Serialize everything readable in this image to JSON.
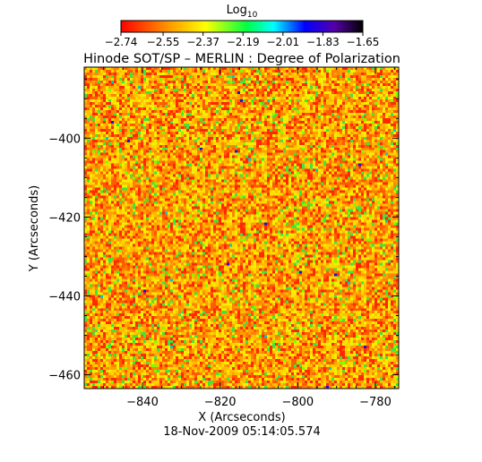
{
  "chart_data": {
    "type": "heatmap",
    "title": "Hinode SOT/SP – MERLIN : Degree of Polarization",
    "xlabel": "X (Arcseconds)",
    "ylabel": "Y (Arcseconds)",
    "timestamp": "18-Nov-2009 05:14:05.574",
    "xlim": [
      -855,
      -774
    ],
    "ylim": [
      -463.5,
      -382
    ],
    "x_ticks": [
      {
        "value": -840,
        "label": "−840"
      },
      {
        "value": -820,
        "label": "−820"
      },
      {
        "value": -800,
        "label": "−800"
      },
      {
        "value": -780,
        "label": "−780"
      }
    ],
    "y_ticks": [
      {
        "value": -400,
        "label": "−400"
      },
      {
        "value": -420,
        "label": "−420"
      },
      {
        "value": -440,
        "label": "−440"
      },
      {
        "value": -460,
        "label": "−460"
      }
    ],
    "colorbar": {
      "label_base": "Log",
      "label_subscript": "10",
      "range": [
        -2.74,
        -1.65
      ],
      "ticks": [
        {
          "value": -2.74,
          "label": "−2.74"
        },
        {
          "value": -2.55,
          "label": "−2.55"
        },
        {
          "value": -2.37,
          "label": "−2.37"
        },
        {
          "value": -2.19,
          "label": "−2.19"
        },
        {
          "value": -2.01,
          "label": "−2.01"
        },
        {
          "value": -1.83,
          "label": "−1.83"
        },
        {
          "value": -1.65,
          "label": "−1.65"
        }
      ],
      "colors": [
        "#ff0000",
        "#ff9900",
        "#ffff00",
        "#00ff44",
        "#00ffff",
        "#0000ff",
        "#5500aa",
        "#000000"
      ]
    },
    "grid": false
  }
}
